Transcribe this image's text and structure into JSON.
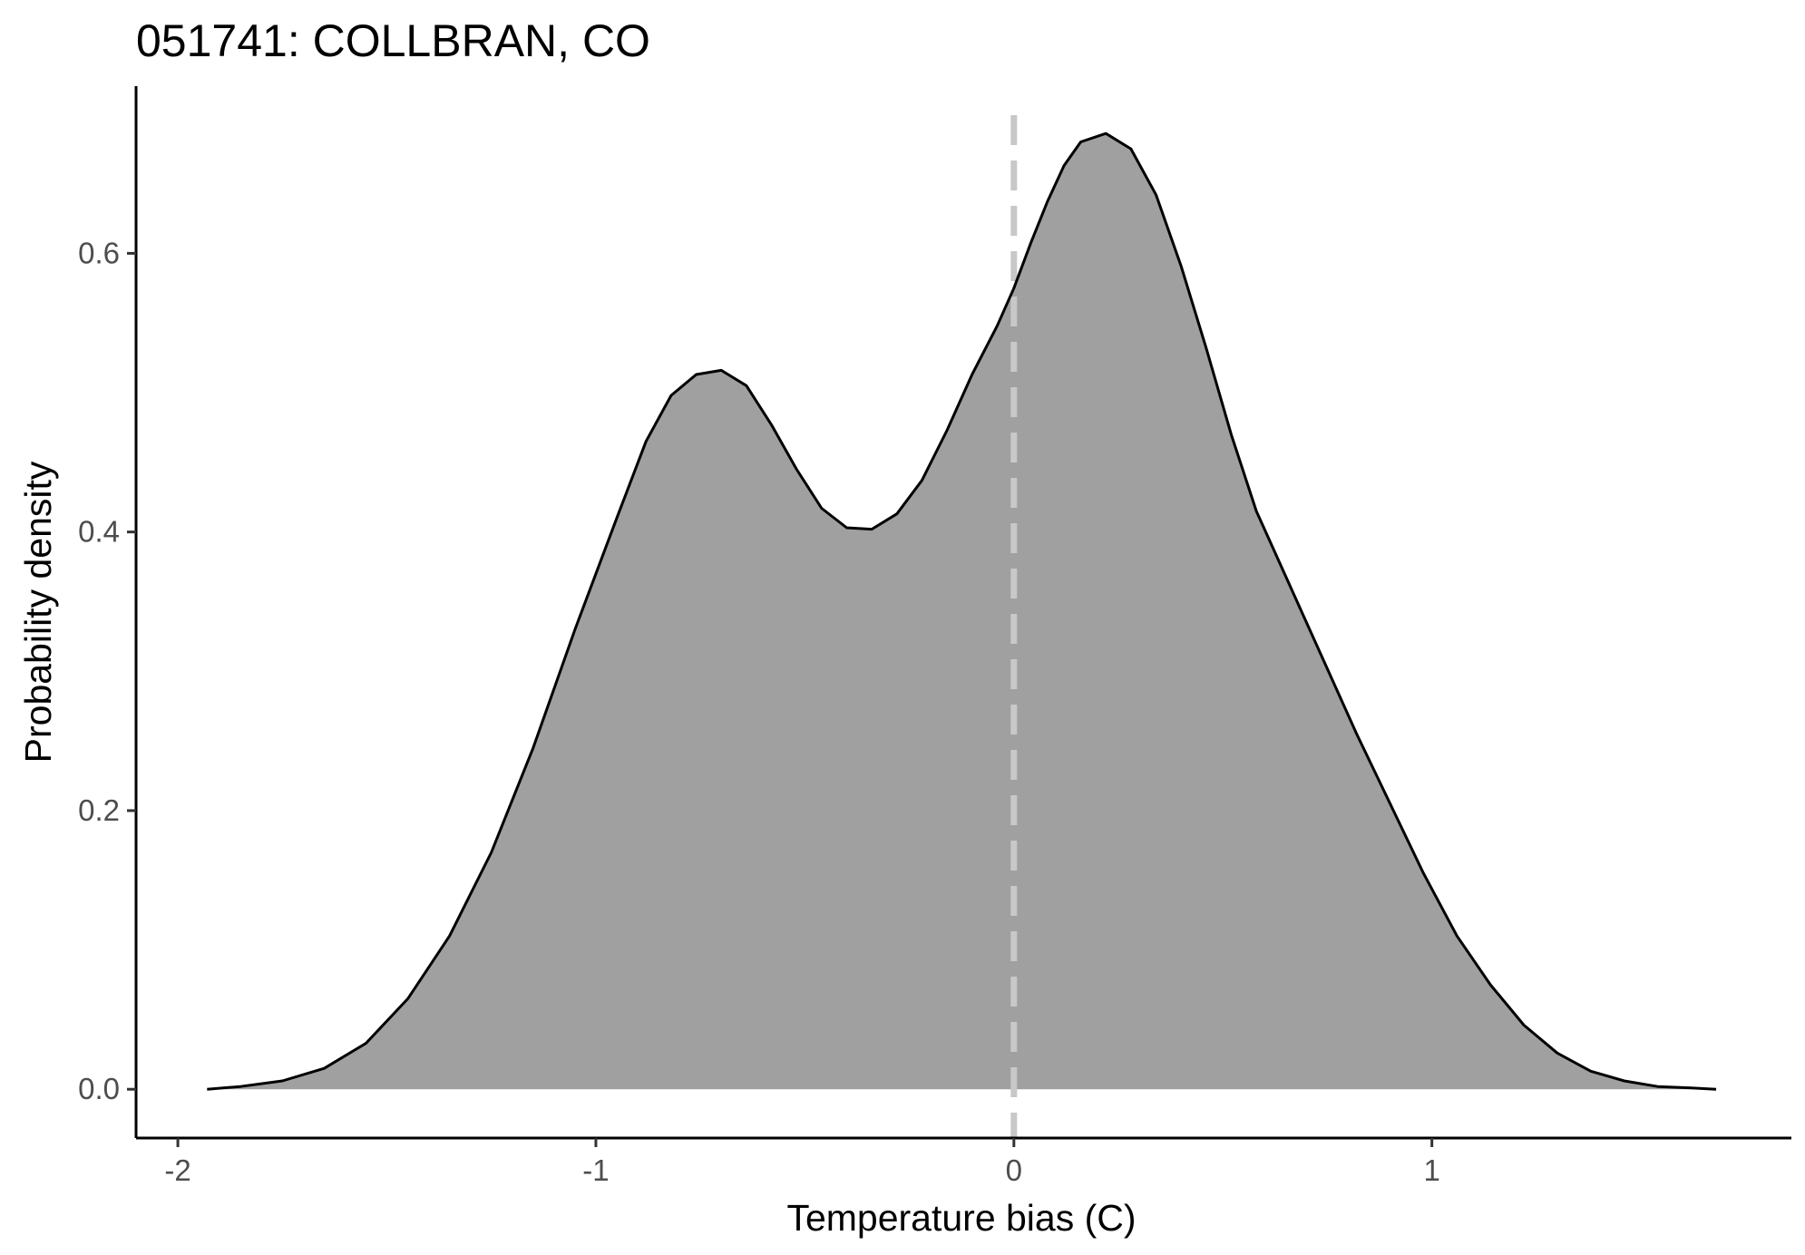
{
  "chart_data": {
    "type": "area",
    "title": "051741: COLLBRAN, CO",
    "xlabel": "Temperature bias (C)",
    "ylabel": "Probability density",
    "xlim": [
      -2.1,
      1.86
    ],
    "ylim": [
      -0.035,
      0.72
    ],
    "x_ticks": [
      -2,
      -1,
      0,
      1
    ],
    "x_tick_labels": [
      "-2",
      "-1",
      "0",
      "1"
    ],
    "y_ticks": [
      0.0,
      0.2,
      0.4,
      0.6
    ],
    "y_tick_labels": [
      "0.0",
      "0.2",
      "0.4",
      "0.6"
    ],
    "grid": false,
    "reference_line": {
      "x": 0,
      "style": "dashed",
      "color": "#c8c8c8"
    },
    "fill_color": "#a0a0a0",
    "line_color": "#000000",
    "series": [
      {
        "x": [
          -1.93,
          -1.85,
          -1.75,
          -1.65,
          -1.55,
          -1.45,
          -1.35,
          -1.25,
          -1.15,
          -1.05,
          -0.95,
          -0.88,
          -0.82,
          -0.76,
          -0.7,
          -0.64,
          -0.58,
          -0.52,
          -0.46,
          -0.4,
          -0.34,
          -0.28,
          -0.22,
          -0.16,
          -0.1,
          -0.04,
          0.0,
          0.04,
          0.08,
          0.12,
          0.16,
          0.22,
          0.28,
          0.34,
          0.4,
          0.46,
          0.52,
          0.58,
          0.64,
          0.7,
          0.76,
          0.82,
          0.9,
          0.98,
          1.06,
          1.14,
          1.22,
          1.3,
          1.38,
          1.46,
          1.54,
          1.62,
          1.68
        ],
        "y": [
          0.0,
          0.002,
          0.006,
          0.015,
          0.033,
          0.065,
          0.11,
          0.17,
          0.245,
          0.33,
          0.41,
          0.465,
          0.498,
          0.513,
          0.516,
          0.505,
          0.477,
          0.445,
          0.417,
          0.403,
          0.402,
          0.413,
          0.437,
          0.473,
          0.513,
          0.548,
          0.575,
          0.607,
          0.637,
          0.663,
          0.68,
          0.686,
          0.675,
          0.642,
          0.591,
          0.532,
          0.47,
          0.415,
          0.375,
          0.335,
          0.295,
          0.255,
          0.205,
          0.155,
          0.11,
          0.075,
          0.046,
          0.026,
          0.013,
          0.006,
          0.002,
          0.001,
          0.0
        ]
      }
    ]
  }
}
